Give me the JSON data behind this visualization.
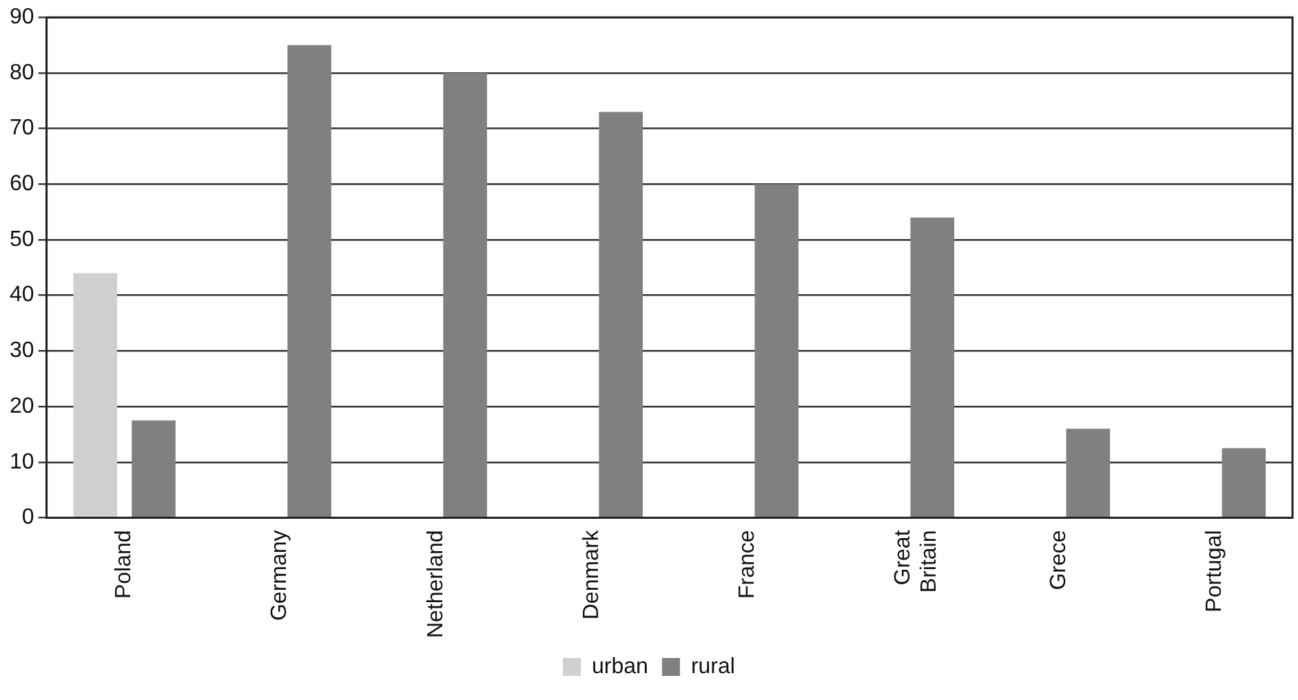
{
  "chart_data": {
    "type": "bar",
    "categories": [
      "Poland",
      "Germany",
      "Netherland",
      "Denmark",
      "France",
      "Great Britain",
      "Grece",
      "Portugal"
    ],
    "series": [
      {
        "name": "urban",
        "color": "#d0d0d0",
        "values": [
          44,
          null,
          null,
          null,
          null,
          null,
          null,
          null
        ]
      },
      {
        "name": "rural",
        "color": "#808080",
        "values": [
          17.5,
          85,
          80,
          73,
          60,
          54,
          16,
          12.5
        ]
      }
    ],
    "ylim": [
      0,
      90
    ],
    "yticks": [
      0,
      10,
      20,
      30,
      40,
      50,
      60,
      70,
      80,
      90
    ],
    "grid": "y",
    "legend": "bottom"
  }
}
